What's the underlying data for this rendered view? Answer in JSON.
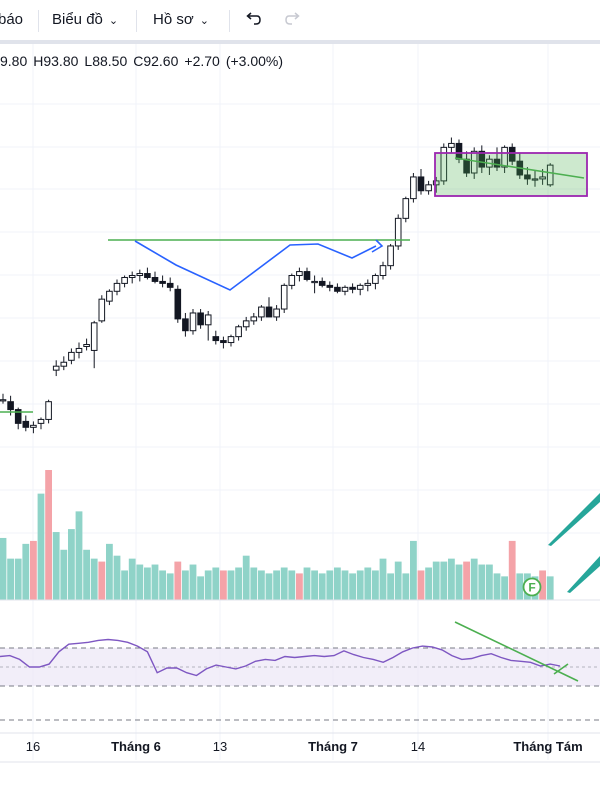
{
  "toolbar": {
    "partial_label": "báo",
    "chart_menu_label": "Biểu đồ",
    "profile_menu_label": "Hồ sơ",
    "undo_icon": "undo-icon",
    "redo_icon": "redo-icon"
  },
  "ohlc": {
    "open": "9.80",
    "high": "H93.80",
    "low": "L88.50",
    "close": "C92.60",
    "change": "+2.70",
    "change_pct": "(+3.00%)"
  },
  "colors": {
    "up": "#26a69a",
    "down": "#ef5350",
    "vol_up": "#8fd3c8",
    "vol_down": "#f4a3a8",
    "rsi": "#7e57c2",
    "pattern_blue": "#2962ff",
    "trend_green": "#4caf50",
    "box": "#9c27b0"
  },
  "chart_data": [
    {
      "type": "candlestick",
      "x_tick_labels": [
        "16",
        "Tháng 6",
        "13",
        "Tháng 7",
        "14",
        "Tháng Tám"
      ],
      "ylim": [
        70,
        100
      ],
      "candles": [
        [
          82.0,
          82.3,
          81.8,
          82.0
        ],
        [
          81.9,
          82.2,
          81.2,
          81.5
        ],
        [
          81.5,
          81.6,
          80.5,
          80.8
        ],
        [
          80.9,
          81.2,
          80.4,
          80.6
        ],
        [
          80.6,
          80.9,
          80.3,
          80.7
        ],
        [
          80.8,
          81.1,
          80.5,
          81.0
        ],
        [
          81.0,
          82.0,
          80.8,
          81.9
        ],
        [
          83.5,
          84.0,
          83.2,
          83.7
        ],
        [
          83.7,
          84.2,
          83.5,
          83.9
        ],
        [
          84.0,
          84.6,
          83.8,
          84.4
        ],
        [
          84.4,
          84.9,
          84.1,
          84.6
        ],
        [
          84.7,
          85.1,
          84.5,
          84.8
        ],
        [
          84.5,
          86.0,
          83.6,
          85.9
        ],
        [
          86.0,
          87.3,
          85.9,
          87.1
        ],
        [
          87.0,
          87.6,
          86.8,
          87.5
        ],
        [
          87.5,
          88.1,
          87.3,
          87.9
        ],
        [
          87.9,
          88.3,
          87.7,
          88.2
        ],
        [
          88.2,
          88.5,
          87.9,
          88.3
        ],
        [
          88.3,
          88.6,
          88.0,
          88.4
        ],
        [
          88.4,
          88.7,
          88.1,
          88.2
        ],
        [
          88.2,
          88.5,
          87.9,
          88.0
        ],
        [
          88.0,
          88.3,
          87.7,
          87.9
        ],
        [
          87.9,
          88.2,
          87.5,
          87.7
        ],
        [
          87.6,
          87.8,
          85.9,
          86.1
        ],
        [
          86.1,
          86.4,
          85.2,
          85.5
        ],
        [
          85.5,
          86.6,
          85.3,
          86.4
        ],
        [
          86.4,
          86.6,
          85.6,
          85.8
        ],
        [
          85.8,
          86.5,
          85.0,
          86.3
        ],
        [
          85.2,
          85.5,
          84.8,
          85.0
        ],
        [
          85.0,
          85.2,
          84.6,
          84.9
        ],
        [
          84.9,
          85.3,
          84.7,
          85.2
        ],
        [
          85.2,
          85.8,
          85.0,
          85.7
        ],
        [
          85.7,
          86.2,
          85.5,
          86.0
        ],
        [
          86.0,
          86.4,
          85.8,
          86.2
        ],
        [
          86.2,
          86.8,
          86.0,
          86.7
        ],
        [
          86.7,
          87.2,
          86.5,
          86.2
        ],
        [
          86.2,
          86.8,
          86.0,
          86.6
        ],
        [
          86.6,
          87.9,
          86.4,
          87.8
        ],
        [
          87.8,
          88.4,
          87.6,
          88.3
        ],
        [
          88.3,
          88.7,
          88.0,
          88.5
        ],
        [
          88.5,
          88.7,
          88.0,
          88.1
        ],
        [
          88.0,
          88.3,
          87.4,
          88.0
        ],
        [
          88.0,
          88.2,
          87.7,
          87.8
        ],
        [
          87.8,
          88.0,
          87.5,
          87.7
        ],
        [
          87.7,
          87.9,
          87.4,
          87.5
        ],
        [
          87.5,
          87.8,
          87.3,
          87.7
        ],
        [
          87.7,
          87.9,
          87.4,
          87.6
        ],
        [
          87.6,
          87.9,
          87.3,
          87.8
        ],
        [
          87.8,
          88.1,
          87.5,
          87.9
        ],
        [
          87.9,
          88.4,
          87.6,
          88.3
        ],
        [
          88.3,
          89.0,
          88.1,
          88.8
        ],
        [
          88.8,
          89.9,
          88.6,
          89.8
        ],
        [
          89.8,
          91.4,
          89.6,
          91.2
        ],
        [
          91.2,
          92.3,
          91.0,
          92.2
        ],
        [
          92.2,
          93.5,
          92.0,
          93.3
        ],
        [
          93.3,
          93.7,
          92.4,
          92.6
        ],
        [
          92.6,
          93.1,
          92.4,
          92.9
        ],
        [
          92.9,
          93.3,
          92.5,
          93.1
        ],
        [
          93.1,
          95.0,
          92.9,
          94.8
        ],
        [
          94.8,
          95.3,
          94.5,
          95.0
        ],
        [
          95.0,
          95.2,
          94.0,
          94.2
        ],
        [
          94.2,
          94.6,
          93.3,
          93.5
        ],
        [
          93.5,
          94.8,
          93.2,
          94.6
        ],
        [
          94.6,
          94.9,
          93.5,
          93.8
        ],
        [
          93.8,
          94.4,
          93.4,
          94.2
        ],
        [
          94.2,
          94.8,
          93.6,
          93.8
        ],
        [
          93.8,
          94.9,
          93.5,
          94.8
        ],
        [
          94.8,
          95.0,
          93.9,
          94.1
        ],
        [
          94.1,
          94.5,
          93.2,
          93.4
        ],
        [
          93.4,
          93.8,
          92.9,
          93.2
        ],
        [
          93.2,
          93.6,
          92.8,
          93.2
        ],
        [
          93.2,
          93.7,
          92.9,
          93.3
        ],
        [
          92.9,
          94.0,
          92.8,
          93.9
        ]
      ],
      "volume": [
        21,
        14,
        14,
        19,
        20,
        36,
        44,
        23,
        17,
        24,
        30,
        17,
        14,
        13,
        19,
        15,
        10,
        14,
        12,
        11,
        12,
        10,
        9,
        13,
        10,
        12,
        8,
        10,
        11,
        10,
        10,
        11,
        15,
        11,
        10,
        9,
        10,
        11,
        10,
        9,
        11,
        10,
        9,
        10,
        11,
        10,
        9,
        10,
        11,
        10,
        14,
        9,
        13,
        9,
        20,
        10,
        11,
        13,
        13,
        14,
        12,
        13,
        14,
        12,
        12,
        9,
        8,
        20,
        9,
        9,
        8,
        10,
        8
      ],
      "volume_down_indexes": [
        4,
        6,
        13,
        23,
        29,
        39,
        55,
        61,
        67,
        71
      ],
      "rsi": [
        61,
        62,
        58,
        50,
        50,
        53,
        66,
        74,
        75,
        76,
        78,
        79,
        78,
        76,
        72,
        66,
        44,
        49,
        49,
        44,
        41,
        48,
        52,
        50,
        48,
        51,
        56,
        58,
        57,
        61,
        60,
        61,
        62,
        61,
        62,
        67,
        63,
        60,
        58,
        55,
        60,
        66,
        70,
        72,
        71,
        68,
        62,
        58,
        59,
        62,
        64,
        60,
        57,
        56,
        55,
        51,
        53,
        51
      ],
      "rsi_levels": [
        70,
        50,
        30
      ],
      "annotations": [
        {
          "type": "horizontal-line",
          "color": "green",
          "value": 88.5
        },
        {
          "type": "inverse-head-and-shoulders",
          "color": "blue"
        },
        {
          "type": "descending-channel-box",
          "color": "purple"
        }
      ],
      "badge": "F"
    }
  ]
}
